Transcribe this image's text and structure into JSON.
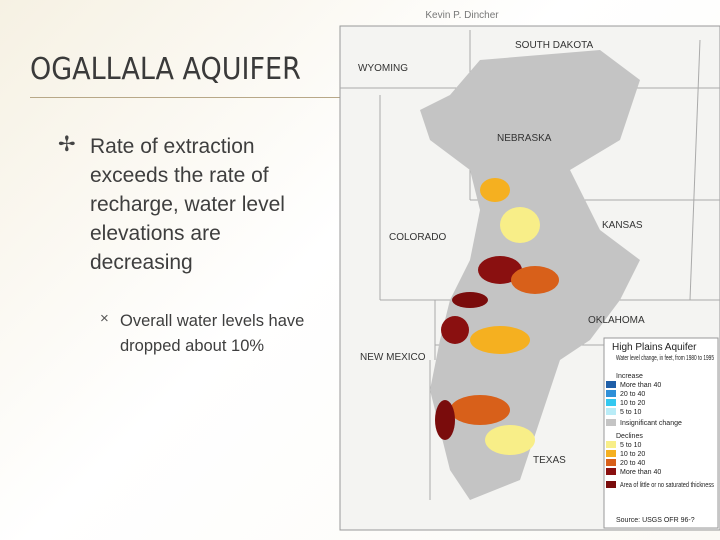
{
  "slide": {
    "author": "Kevin P. Dincher",
    "title": "OGALLALA AQUIFER",
    "bullets": [
      {
        "text": "Rate of extraction exceeds the rate of recharge, water level elevations are decreasing",
        "sub_bullets": [
          "Overall water levels have dropped about 10%"
        ]
      }
    ],
    "map": {
      "states": [
        "SOUTH DAKOTA",
        "WYOMING",
        "NEBRASKA",
        "KANSAS",
        "COLORADO",
        "OKLAHOMA",
        "NEW MEXICO",
        "TEXAS"
      ],
      "legend": {
        "title": "High Plains Aquifer",
        "subtitle": "Water level change, in feet, from 1980 to 1995",
        "increase_heading": "Increase",
        "increase": [
          {
            "label": "More than 40",
            "color": "#1f5fa8"
          },
          {
            "label": "20 to 40",
            "color": "#2f8fd8"
          },
          {
            "label": "10 to 20",
            "color": "#33c8f0"
          },
          {
            "label": "5 to 10",
            "color": "#b9ecf7"
          }
        ],
        "insignificant": {
          "label": "Insignificant change",
          "color": "#c4c4c4"
        },
        "decline_heading": "Declines",
        "declines": [
          {
            "label": "5 to 10",
            "color": "#f8ee88"
          },
          {
            "label": "10 to 20",
            "color": "#f5b020"
          },
          {
            "label": "20 to 40",
            "color": "#d8601a"
          },
          {
            "label": "More than 40",
            "color": "#8a1010"
          }
        ],
        "no_saturation": {
          "label": "Area of little or no saturated thickness",
          "color": "#7a0c0c"
        },
        "source": "Source: USGS OFR 96-?"
      }
    }
  }
}
